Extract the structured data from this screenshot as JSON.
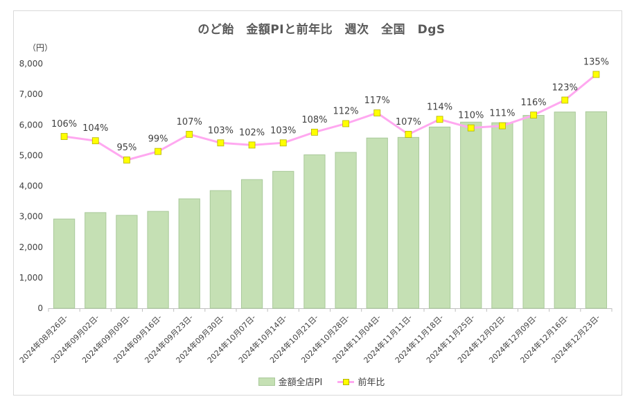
{
  "chart_data": {
    "type": "bar+line",
    "title": "のど飴　金額PIと前年比　週次　全国　DgS",
    "unit_label": "（円）",
    "ylim": [
      0,
      8000
    ],
    "yticks": [
      "0",
      "1,000",
      "2,000",
      "3,000",
      "4,000",
      "5,000",
      "6,000",
      "7,000",
      "8,000"
    ],
    "categories": [
      "2024年08月26日-",
      "2024年09月02日-",
      "2024年09月09日-",
      "2024年09月16日-",
      "2024年09月23日-",
      "2024年09月30日-",
      "2024年10月07日-",
      "2024年10月14日-",
      "2024年10月21日-",
      "2024年10月28日-",
      "2024年11月04日-",
      "2024年11月11日-",
      "2024年11月18日-",
      "2024年11月25日-",
      "2024年12月02日-",
      "2024年12月09日-",
      "2024年12月16日-",
      "2024年12月23日-"
    ],
    "series": [
      {
        "name": "金額全店PI",
        "type": "bar",
        "color": "#c5e0b4",
        "values": [
          2920,
          3130,
          3040,
          3170,
          3580,
          3850,
          4210,
          4480,
          5020,
          5100,
          5570,
          5590,
          5930,
          6090,
          6070,
          6310,
          6420,
          6430
        ]
      },
      {
        "name": "前年比",
        "type": "line",
        "color": "#ffa8f0",
        "marker_color": "#ffff00",
        "values": [
          106,
          104,
          95,
          99,
          107,
          103,
          102,
          103,
          108,
          112,
          117,
          107,
          114,
          110,
          111,
          116,
          123,
          135
        ],
        "labels": [
          "106%",
          "104%",
          "95%",
          "99%",
          "107%",
          "103%",
          "102%",
          "103%",
          "108%",
          "112%",
          "117%",
          "107%",
          "114%",
          "110%",
          "111%",
          "116%",
          "123%",
          "135%"
        ]
      }
    ]
  },
  "legend": {
    "bar_label": "金額全店PI",
    "line_label": "前年比"
  }
}
